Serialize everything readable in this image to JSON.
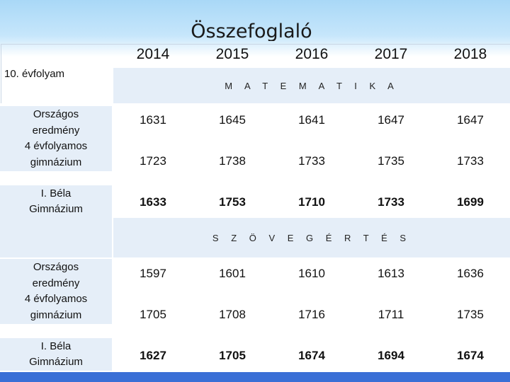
{
  "title": "Összefoglaló",
  "grade_label": "10. évfolyam",
  "years": [
    "2014",
    "2015",
    "2016",
    "2017",
    "2018"
  ],
  "sections": [
    {
      "name": "M A T E M A T I K A",
      "row_labels": {
        "national": "Országos\neredmény\n4 évfolyamos\ngimnázium",
        "school": "I. Béla\nGimnázium"
      },
      "rows": [
        {
          "label": "Országos eredmény",
          "values": [
            "1631",
            "1645",
            "1641",
            "1647",
            "1647"
          ]
        },
        {
          "label": "4 évfolyamos gimnázium",
          "values": [
            "1723",
            "1738",
            "1733",
            "1735",
            "1733"
          ]
        },
        {
          "label": "I. Béla Gimnázium",
          "values": [
            "1633",
            "1753",
            "1710",
            "1733",
            "1699"
          ]
        }
      ]
    },
    {
      "name": "S Z Ö V E G É R T É S",
      "row_labels": {
        "national": "Országos\neredmény\n4 évfolyamos\ngimnázium",
        "school": "I. Béla\nGimnázium"
      },
      "rows": [
        {
          "label": "Országos eredmény",
          "values": [
            "1597",
            "1601",
            "1610",
            "1613",
            "1636"
          ]
        },
        {
          "label": "4 évfolyamos gimnázium",
          "values": [
            "1705",
            "1708",
            "1716",
            "1711",
            "1735"
          ]
        },
        {
          "label": "I. Béla Gimnázium",
          "values": [
            "1627",
            "1705",
            "1674",
            "1694",
            "1674"
          ]
        }
      ]
    }
  ]
}
